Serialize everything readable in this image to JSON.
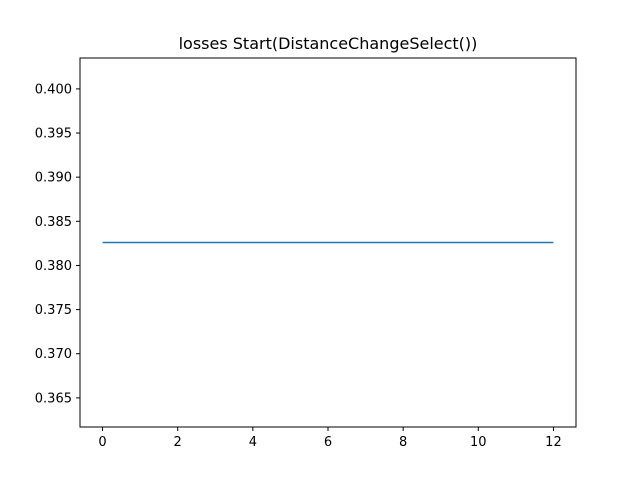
{
  "chart_data": {
    "type": "line",
    "title": "losses Start(DistanceChangeSelect())",
    "xlabel": "",
    "ylabel": "",
    "x": [
      0,
      1,
      2,
      3,
      4,
      5,
      6,
      7,
      8,
      9,
      10,
      11,
      12
    ],
    "series": [
      {
        "values": [
          0.3826,
          0.3826,
          0.3826,
          0.3826,
          0.3826,
          0.3826,
          0.3826,
          0.3826,
          0.3826,
          0.3826,
          0.3826,
          0.3826,
          0.3826
        ],
        "color": "#1f77b4"
      }
    ],
    "xlim": [
      -0.6,
      12.6
    ],
    "ylim": [
      0.3617,
      0.4035
    ],
    "xticks": [
      0,
      2,
      4,
      6,
      8,
      10,
      12
    ],
    "xtick_labels": [
      "0",
      "2",
      "4",
      "6",
      "8",
      "10",
      "12"
    ],
    "yticks": [
      0.365,
      0.37,
      0.375,
      0.38,
      0.385,
      0.39,
      0.395,
      0.4
    ],
    "ytick_labels": [
      "0.365",
      "0.370",
      "0.375",
      "0.380",
      "0.385",
      "0.390",
      "0.395",
      "0.400"
    ],
    "grid": false,
    "legend": "none"
  }
}
